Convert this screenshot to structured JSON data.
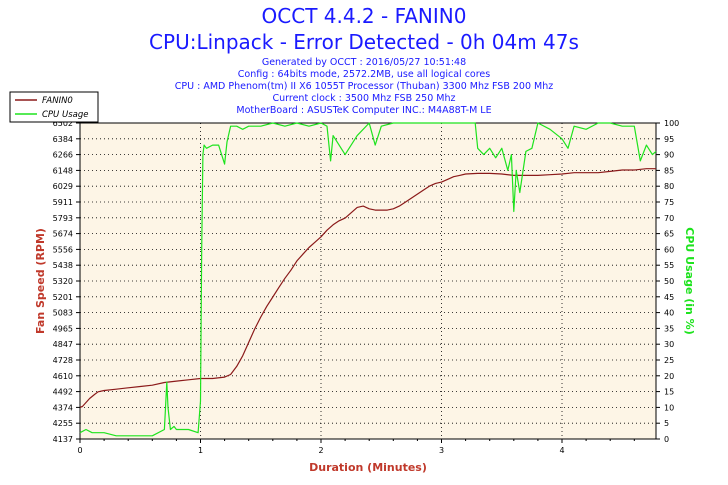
{
  "title": "OCCT 4.4.2 - FANIN0",
  "subtitle": "CPU:Linpack - Error Detected - 0h 04m 47s",
  "info_lines": [
    "Generated by OCCT : 2016/05/27 10:51:48",
    "Config : 64bits mode, 2572.2MB, use all logical cores",
    "CPU : AMD Phenom(tm) II X6 1055T Processor (Thuban) 3300 Mhz FSB 200 Mhz",
    "Current clock : 3500 Mhz FSB 250 Mhz",
    "MotherBoard : ASUSTeK Computer INC.: M4A88T-M LE"
  ],
  "colors": {
    "fan": "#8b1a1a",
    "cpu": "#1ee31e",
    "title": "#1a1aff",
    "axis_label": "#c0392b",
    "plot_bg": "#fdf5e6"
  },
  "chart_data": {
    "type": "line",
    "xlabel": "Duration (Minutes)",
    "ylabel_left": "Fan Speed (RPM)",
    "ylabel_right": "CPU Usage (in %)",
    "xlim": [
      0,
      4.78
    ],
    "x_ticks": [
      "0",
      "1",
      "2",
      "3",
      "4"
    ],
    "y_left_ticks": [
      "4137",
      "4255",
      "4374",
      "4492",
      "4610",
      "4728",
      "4847",
      "4965",
      "5083",
      "5201",
      "5320",
      "5438",
      "5556",
      "5674",
      "5793",
      "5911",
      "6029",
      "6148",
      "6266",
      "6384",
      "6502"
    ],
    "ylim_left": [
      4137,
      6502
    ],
    "y_right_ticks": [
      "0",
      "5",
      "10",
      "15",
      "20",
      "25",
      "30",
      "35",
      "40",
      "45",
      "50",
      "55",
      "60",
      "65",
      "70",
      "75",
      "80",
      "85",
      "90",
      "95",
      "100"
    ],
    "ylim_right": [
      0,
      100
    ],
    "grid": true,
    "legend_position": "top-left",
    "series": [
      {
        "name": "FANIN0",
        "axis": "left",
        "x": [
          0,
          0.02,
          0.05,
          0.08,
          0.12,
          0.15,
          0.2,
          0.3,
          0.4,
          0.5,
          0.6,
          0.7,
          0.8,
          0.9,
          1.0,
          1.1,
          1.2,
          1.25,
          1.3,
          1.35,
          1.4,
          1.45,
          1.5,
          1.55,
          1.6,
          1.65,
          1.7,
          1.75,
          1.8,
          1.85,
          1.9,
          1.95,
          2.0,
          2.05,
          2.1,
          2.15,
          2.2,
          2.25,
          2.3,
          2.35,
          2.4,
          2.45,
          2.5,
          2.55,
          2.6,
          2.65,
          2.7,
          2.75,
          2.8,
          2.85,
          2.9,
          2.95,
          3.0,
          3.05,
          3.1,
          3.15,
          3.2,
          3.3,
          3.4,
          3.5,
          3.6,
          3.7,
          3.8,
          3.9,
          4.0,
          4.1,
          4.2,
          4.3,
          4.4,
          4.5,
          4.6,
          4.7,
          4.78
        ],
        "values": [
          4374,
          4380,
          4410,
          4440,
          4470,
          4490,
          4500,
          4510,
          4520,
          4530,
          4540,
          4560,
          4570,
          4580,
          4590,
          4590,
          4600,
          4620,
          4680,
          4760,
          4860,
          4960,
          5050,
          5130,
          5200,
          5270,
          5340,
          5400,
          5470,
          5520,
          5570,
          5610,
          5650,
          5700,
          5740,
          5770,
          5790,
          5830,
          5870,
          5880,
          5860,
          5850,
          5850,
          5850,
          5860,
          5880,
          5910,
          5940,
          5970,
          6000,
          6030,
          6050,
          6060,
          6080,
          6100,
          6110,
          6120,
          6125,
          6125,
          6120,
          6110,
          6110,
          6110,
          6115,
          6120,
          6130,
          6130,
          6130,
          6140,
          6150,
          6150,
          6160,
          6160
        ]
      },
      {
        "name": "CPU Usage",
        "axis": "right",
        "x": [
          0,
          0.05,
          0.1,
          0.2,
          0.3,
          0.4,
          0.5,
          0.6,
          0.7,
          0.72,
          0.73,
          0.75,
          0.78,
          0.8,
          0.9,
          0.98,
          1.0,
          1.01,
          1.02,
          1.03,
          1.05,
          1.1,
          1.15,
          1.2,
          1.22,
          1.25,
          1.3,
          1.35,
          1.4,
          1.5,
          1.6,
          1.7,
          1.8,
          1.9,
          2.0,
          2.05,
          2.08,
          2.1,
          2.15,
          2.2,
          2.3,
          2.4,
          2.45,
          2.5,
          2.6,
          2.8,
          3.0,
          3.2,
          3.28,
          3.3,
          3.35,
          3.4,
          3.45,
          3.5,
          3.55,
          3.58,
          3.6,
          3.62,
          3.65,
          3.7,
          3.75,
          3.8,
          3.9,
          4.0,
          4.05,
          4.1,
          4.2,
          4.3,
          4.4,
          4.5,
          4.6,
          4.65,
          4.7,
          4.75,
          4.78
        ],
        "values": [
          2,
          3,
          2,
          2,
          1,
          1,
          1,
          1,
          3,
          18,
          10,
          3,
          4,
          3,
          3,
          2,
          12,
          60,
          90,
          93,
          92,
          93,
          93,
          87,
          94,
          99,
          99,
          98,
          99,
          99,
          100,
          99,
          100,
          99,
          100,
          99,
          88,
          96,
          93,
          90,
          96,
          100,
          93,
          99,
          100,
          100,
          100,
          100,
          100,
          92,
          90,
          92,
          89,
          92,
          85,
          90,
          72,
          85,
          78,
          91,
          92,
          100,
          98,
          95,
          92,
          99,
          98,
          100,
          100,
          99,
          99,
          88,
          93,
          90,
          91
        ]
      }
    ]
  }
}
